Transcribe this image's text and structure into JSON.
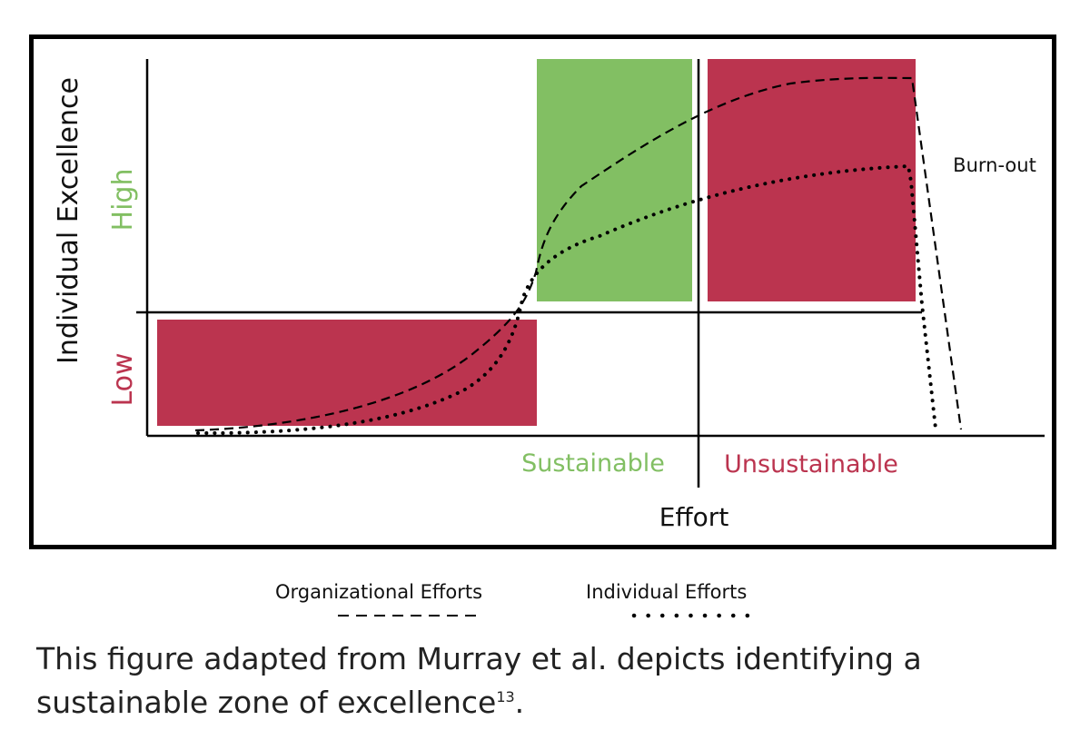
{
  "diagram": {
    "y_axis_label": "Individual Excellence",
    "y_level_high": "High",
    "y_level_low": "Low",
    "x_axis_label": "Effort",
    "zone_sustainable": "Sustainable",
    "zone_unsustainable": "Unsustainable",
    "annotation_burnout": "Burn-out",
    "colors": {
      "green": "#82bf63",
      "red": "#bb344f",
      "axis": "#000000"
    }
  },
  "legend": {
    "organizational": "Organizational Efforts",
    "individual": "Individual Efforts"
  },
  "caption": {
    "text": "This figure adapted from Murray et al. depicts identifying a sustainable zone of excellence",
    "superscript": "13",
    "end": "."
  }
}
